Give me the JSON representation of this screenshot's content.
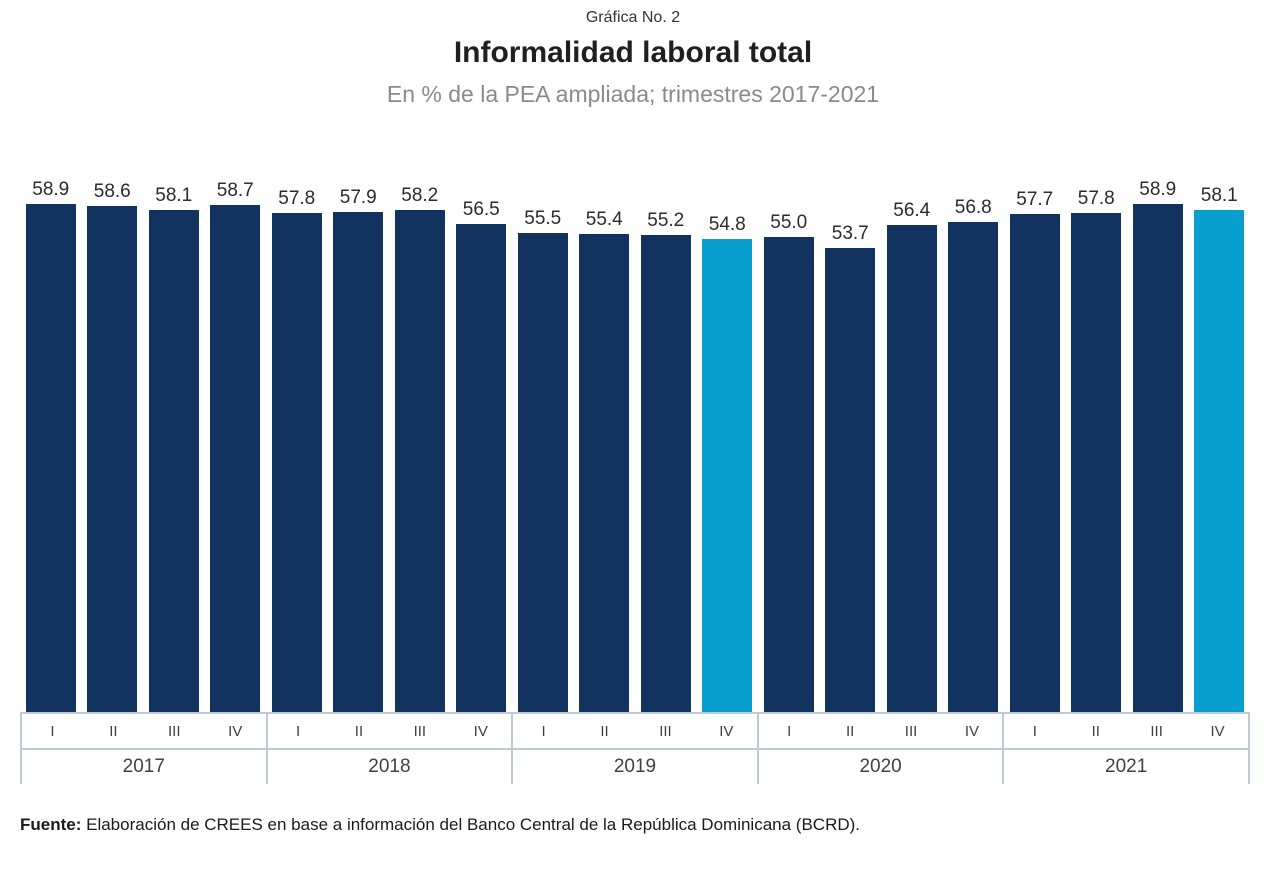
{
  "header": {
    "figure_label": "Gráfica No. 2",
    "title": "Informalidad laboral total",
    "subtitle": "En % de la PEA ampliada; trimestres 2017-2021"
  },
  "chart_data": {
    "type": "bar",
    "title": "Informalidad laboral total",
    "subtitle": "En % de la PEA ampliada; trimestres 2017-2021",
    "unit": "% de la PEA ampliada",
    "ylim": [
      0,
      60
    ],
    "grid": false,
    "legend": "none",
    "value_label_decimals": 1,
    "groups": [
      {
        "year": "2017",
        "quarters": [
          "I",
          "II",
          "III",
          "IV"
        ],
        "values": [
          58.9,
          58.6,
          58.1,
          58.7
        ]
      },
      {
        "year": "2018",
        "quarters": [
          "I",
          "II",
          "III",
          "IV"
        ],
        "values": [
          57.8,
          57.9,
          58.2,
          56.5
        ]
      },
      {
        "year": "2019",
        "quarters": [
          "I",
          "II",
          "III",
          "IV"
        ],
        "values": [
          55.5,
          55.4,
          55.2,
          54.8
        ]
      },
      {
        "year": "2020",
        "quarters": [
          "I",
          "II",
          "III",
          "IV"
        ],
        "values": [
          55.0,
          53.7,
          56.4,
          56.8
        ]
      },
      {
        "year": "2021",
        "quarters": [
          "I",
          "II",
          "III",
          "IV"
        ],
        "values": [
          57.7,
          57.8,
          58.9,
          58.1
        ]
      }
    ],
    "highlight_indices": [
      11,
      19
    ],
    "colors": {
      "bar": "#123360",
      "highlight": "#089fce",
      "axis_line": "#bccbd5",
      "value_label": "#2b2b2b"
    }
  },
  "footer": {
    "source_label": "Fuente:",
    "source_text": " Elaboración de CREES en base a información del Banco Central de la República Dominicana (BCRD)."
  }
}
